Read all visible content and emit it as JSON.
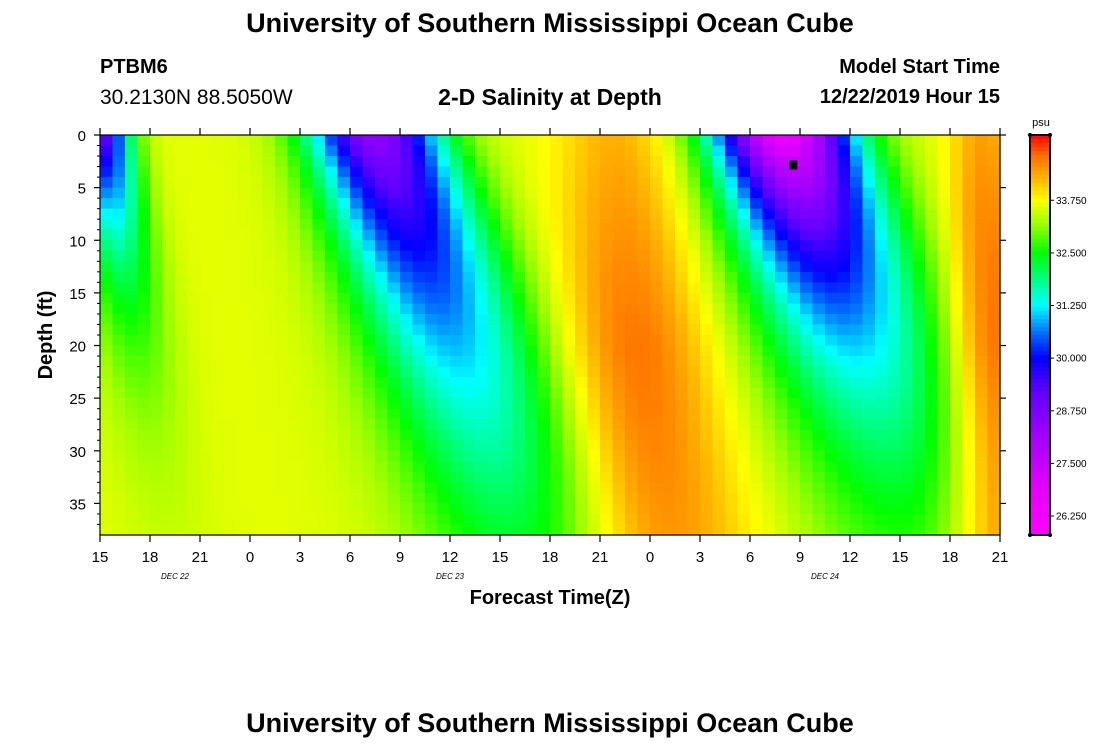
{
  "page": {
    "title": "University of Southern Mississippi Ocean Cube",
    "footer_title": "University of Southern Mississippi Ocean Cube",
    "station_id": "PTBM6",
    "station_location": "30.2130N 88.5050W",
    "chart_title": "2-D Salinity at Depth",
    "model_start_label": "Model Start Time",
    "model_start_value": "12/22/2019 Hour 15"
  },
  "chart_data": {
    "type": "heatmap",
    "title": "2-D Salinity at Depth",
    "xlabel": "Forecast Time(Z)",
    "ylabel": "Depth (ft)",
    "colorbar_unit": "psu",
    "x_range_hours": [
      0,
      54
    ],
    "y_range_ft": [
      0,
      38
    ],
    "y_ticks": [
      0,
      5,
      10,
      15,
      20,
      25,
      30,
      35
    ],
    "x_ticks": [
      {
        "h": 0,
        "label": "15"
      },
      {
        "h": 3,
        "label": "18"
      },
      {
        "h": 6,
        "label": "21"
      },
      {
        "h": 9,
        "label": "0"
      },
      {
        "h": 12,
        "label": "3"
      },
      {
        "h": 15,
        "label": "6"
      },
      {
        "h": 18,
        "label": "9"
      },
      {
        "h": 21,
        "label": "12"
      },
      {
        "h": 24,
        "label": "15"
      },
      {
        "h": 27,
        "label": "18"
      },
      {
        "h": 30,
        "label": "21"
      },
      {
        "h": 33,
        "label": "0"
      },
      {
        "h": 36,
        "label": "3"
      },
      {
        "h": 39,
        "label": "6"
      },
      {
        "h": 42,
        "label": "9"
      },
      {
        "h": 45,
        "label": "12"
      },
      {
        "h": 48,
        "label": "15"
      },
      {
        "h": 51,
        "label": "18"
      },
      {
        "h": 54,
        "label": "21"
      }
    ],
    "date_labels": [
      {
        "h": 4.5,
        "label": "DEC 22"
      },
      {
        "h": 21,
        "label": "DEC 23"
      },
      {
        "h": 43.5,
        "label": "DEC 24"
      }
    ],
    "colorbar": {
      "min": 25.8,
      "max": 35.3,
      "labels": [
        "33.750",
        "32.500",
        "31.250",
        "30.000",
        "28.750",
        "27.500",
        "26.250"
      ],
      "label_values": [
        33.75,
        32.5,
        31.25,
        30.0,
        28.75,
        27.5,
        26.25
      ],
      "colors": [
        {
          "v": 25.8,
          "c": "#ff00ff"
        },
        {
          "v": 27.0,
          "c": "#e000ff"
        },
        {
          "v": 28.2,
          "c": "#a000ff"
        },
        {
          "v": 29.2,
          "c": "#6000ff"
        },
        {
          "v": 30.0,
          "c": "#0000ff"
        },
        {
          "v": 30.6,
          "c": "#0070ff"
        },
        {
          "v": 31.25,
          "c": "#00ffff"
        },
        {
          "v": 31.8,
          "c": "#00ff90"
        },
        {
          "v": 32.5,
          "c": "#00ff00"
        },
        {
          "v": 33.2,
          "c": "#a0ff00"
        },
        {
          "v": 33.75,
          "c": "#ffff00"
        },
        {
          "v": 34.3,
          "c": "#ffb000"
        },
        {
          "v": 34.8,
          "c": "#ff7000"
        },
        {
          "v": 35.3,
          "c": "#ff0000"
        }
      ]
    },
    "grid_resolution": {
      "nx": 72,
      "ny": 38
    },
    "field_model": {
      "background": 33.6,
      "fronts": [
        {
          "name": "fresh_a",
          "amp": -4.6,
          "hx": [
            [
              0,
              0.3
            ],
            [
              2,
              1.2
            ],
            [
              4,
              1.5
            ]
          ],
          "wx": 1.8,
          "depth_scale": 12
        },
        {
          "name": "fresh_b",
          "amp": -5.2,
          "hx": [
            [
              16.5,
              20.5
            ],
            [
              21,
              22.0
            ],
            [
              25.5,
              24.0
            ]
          ],
          "wx": 4.0,
          "depth_scale": 30
        },
        {
          "name": "fresh_c",
          "amp": -7.0,
          "hx": [
            [
              41,
              43.5
            ],
            [
              45,
              46.5
            ],
            [
              49,
              50.5
            ]
          ],
          "wx": 4.2,
          "depth_scale": 20
        },
        {
          "name": "salty_d",
          "amp": 1.2,
          "hx": [
            [
              31,
              37
            ],
            [
              33,
              36.5
            ]
          ],
          "wx": 3.5,
          "depth_scale": 60
        },
        {
          "name": "salty_e",
          "amp": 1.4,
          "hx": [
            [
              53,
              54
            ],
            [
              54,
              55
            ]
          ],
          "wx": 2.0,
          "depth_scale": 80
        }
      ]
    },
    "marker": {
      "h": 41.6,
      "depth_ft": 2.8
    }
  }
}
